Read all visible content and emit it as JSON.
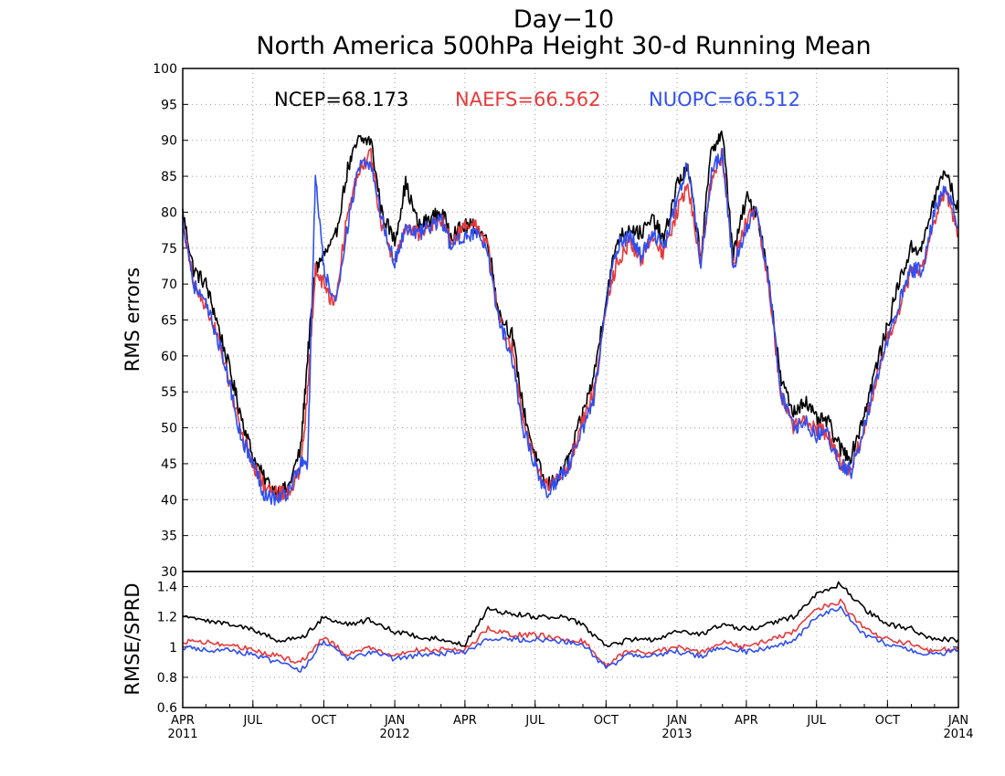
{
  "title": {
    "line1": "Day−10",
    "line2": "North America 500hPa Height 30-d Running Mean"
  },
  "legend": [
    {
      "name": "NCEP",
      "value": "68.173",
      "color": "#000000"
    },
    {
      "name": "NAEFS",
      "value": "66.562",
      "color": "#e8393a"
    },
    {
      "name": "NUOPC",
      "value": "66.512",
      "color": "#2f4ff0"
    }
  ],
  "chart_data": [
    {
      "type": "line",
      "panel": "top",
      "ylabel": "RMS errors",
      "ylim": [
        30,
        100
      ],
      "yticks": [
        30,
        35,
        40,
        45,
        50,
        55,
        60,
        65,
        70,
        75,
        80,
        85,
        90,
        95,
        100
      ],
      "grid": true,
      "x": [
        "2011-04-01",
        "2011-04-15",
        "2011-05-01",
        "2011-05-15",
        "2011-06-01",
        "2011-06-15",
        "2011-07-01",
        "2011-07-15",
        "2011-08-01",
        "2011-08-15",
        "2011-09-01",
        "2011-09-10",
        "2011-09-20",
        "2011-10-01",
        "2011-10-15",
        "2011-11-01",
        "2011-11-15",
        "2011-12-01",
        "2011-12-15",
        "2012-01-01",
        "2012-01-15",
        "2012-02-01",
        "2012-02-15",
        "2012-03-01",
        "2012-03-15",
        "2012-04-01",
        "2012-04-15",
        "2012-05-01",
        "2012-05-15",
        "2012-06-01",
        "2012-06-15",
        "2012-07-01",
        "2012-07-15",
        "2012-08-01",
        "2012-08-15",
        "2012-09-01",
        "2012-09-15",
        "2012-10-01",
        "2012-10-15",
        "2012-11-01",
        "2012-11-15",
        "2012-12-01",
        "2012-12-15",
        "2013-01-01",
        "2013-01-15",
        "2013-02-01",
        "2013-02-15",
        "2013-03-01",
        "2013-03-15",
        "2013-04-01",
        "2013-04-15",
        "2013-05-01",
        "2013-05-15",
        "2013-06-01",
        "2013-06-15",
        "2013-07-01",
        "2013-07-15",
        "2013-08-01",
        "2013-08-15",
        "2013-09-01",
        "2013-09-15",
        "2013-10-01",
        "2013-10-15",
        "2013-11-01",
        "2013-11-15",
        "2013-12-01",
        "2013-12-15",
        "2014-01-01"
      ],
      "series": [
        {
          "name": "NCEP",
          "color": "#000000",
          "values": [
            80,
            72,
            70,
            65,
            58,
            52,
            46,
            43,
            41,
            41.5,
            47,
            60,
            72,
            74,
            76,
            86,
            90,
            90,
            80,
            76,
            84,
            78,
            79,
            80,
            77,
            78,
            78,
            76,
            66,
            63,
            53,
            46,
            42,
            43,
            46,
            52,
            57,
            68,
            76,
            78,
            77,
            79,
            76,
            84,
            86,
            74,
            89,
            91,
            74,
            82,
            80,
            70,
            57,
            52,
            54,
            51,
            51,
            47,
            46,
            52,
            58,
            64,
            70,
            75,
            75,
            82,
            86,
            80
          ]
        },
        {
          "name": "NAEFS",
          "color": "#e8393a",
          "values": [
            79,
            70,
            67,
            63,
            56,
            50,
            45,
            42,
            41,
            41,
            44,
            55,
            72,
            70,
            67,
            80,
            86,
            88,
            78,
            73,
            78,
            77,
            78,
            79,
            76,
            78,
            78,
            75,
            65,
            61,
            51,
            45,
            42,
            43,
            45,
            51,
            55,
            67,
            73,
            76,
            73,
            77,
            74,
            80,
            84,
            73,
            85,
            88,
            73,
            79,
            80,
            69,
            55,
            50,
            51,
            50,
            49,
            45,
            44,
            50,
            56,
            62,
            66,
            72,
            72,
            79,
            83,
            77
          ]
        },
        {
          "name": "NUOPC",
          "color": "#2f4ff0",
          "values": [
            79,
            70,
            67,
            63,
            56,
            49,
            45,
            41,
            40,
            41,
            45,
            45,
            85,
            72,
            67,
            78,
            86,
            87,
            79,
            73,
            78,
            77,
            78,
            79,
            75,
            77,
            77,
            74,
            65,
            60,
            50,
            45,
            41,
            43,
            45,
            50,
            54,
            67,
            75,
            77,
            74,
            77,
            75,
            82,
            87,
            73,
            86,
            88,
            72,
            78,
            80,
            70,
            55,
            50,
            51,
            49,
            49,
            45,
            44,
            50,
            56,
            62,
            67,
            72,
            72,
            80,
            84,
            78
          ]
        }
      ]
    },
    {
      "type": "line",
      "panel": "bottom",
      "ylabel": "RMSE/SPRD",
      "ylim": [
        0.6,
        1.5
      ],
      "yticks": [
        "0.6",
        "0.8",
        "1",
        "1.2",
        "1.4"
      ],
      "grid": true,
      "x_tick_labels": [
        {
          "date": "2011-04-01",
          "month": "APR",
          "year": "2011"
        },
        {
          "date": "2011-07-01",
          "month": "JUL",
          "year": ""
        },
        {
          "date": "2011-10-01",
          "month": "OCT",
          "year": ""
        },
        {
          "date": "2012-01-01",
          "month": "JAN",
          "year": "2012"
        },
        {
          "date": "2012-04-01",
          "month": "APR",
          "year": ""
        },
        {
          "date": "2012-07-01",
          "month": "JUL",
          "year": ""
        },
        {
          "date": "2012-10-01",
          "month": "OCT",
          "year": ""
        },
        {
          "date": "2013-01-01",
          "month": "JAN",
          "year": "2013"
        },
        {
          "date": "2013-04-01",
          "month": "APR",
          "year": ""
        },
        {
          "date": "2013-07-01",
          "month": "JUL",
          "year": ""
        },
        {
          "date": "2013-10-01",
          "month": "OCT",
          "year": ""
        },
        {
          "date": "2014-01-01",
          "month": "JAN",
          "year": "2014"
        }
      ],
      "x": [
        "2011-04-01",
        "2011-05-01",
        "2011-06-01",
        "2011-07-01",
        "2011-08-01",
        "2011-09-01",
        "2011-10-01",
        "2011-11-01",
        "2011-12-01",
        "2012-01-01",
        "2012-02-01",
        "2012-03-01",
        "2012-04-01",
        "2012-05-01",
        "2012-06-01",
        "2012-07-01",
        "2012-08-01",
        "2012-09-01",
        "2012-10-01",
        "2012-11-01",
        "2012-12-01",
        "2013-01-01",
        "2013-02-01",
        "2013-03-01",
        "2013-04-01",
        "2013-05-01",
        "2013-06-01",
        "2013-07-01",
        "2013-08-01",
        "2013-09-01",
        "2013-10-01",
        "2013-11-01",
        "2013-12-01",
        "2014-01-01"
      ],
      "series": [
        {
          "name": "NCEP",
          "color": "#000000",
          "values": [
            1.22,
            1.18,
            1.15,
            1.12,
            1.05,
            1.05,
            1.2,
            1.15,
            1.18,
            1.1,
            1.07,
            1.05,
            1.02,
            1.25,
            1.22,
            1.2,
            1.2,
            1.15,
            1.0,
            1.05,
            1.05,
            1.1,
            1.08,
            1.15,
            1.12,
            1.15,
            1.2,
            1.35,
            1.42,
            1.25,
            1.15,
            1.12,
            1.05,
            1.05
          ]
        },
        {
          "name": "NAEFS",
          "color": "#e8393a",
          "values": [
            1.04,
            1.03,
            1.02,
            0.98,
            0.94,
            0.9,
            1.06,
            0.95,
            1.0,
            0.95,
            0.98,
            0.98,
            0.98,
            1.12,
            1.08,
            1.08,
            1.06,
            1.04,
            0.88,
            0.98,
            0.96,
            1.0,
            0.96,
            1.03,
            1.0,
            1.05,
            1.1,
            1.25,
            1.3,
            1.12,
            1.05,
            1.02,
            0.97,
            1.0
          ]
        },
        {
          "name": "NUOPC",
          "color": "#2f4ff0",
          "values": [
            1.0,
            0.98,
            0.98,
            0.95,
            0.9,
            0.84,
            1.04,
            0.92,
            0.97,
            0.92,
            0.95,
            0.96,
            0.96,
            1.06,
            1.05,
            1.05,
            1.04,
            1.02,
            0.86,
            0.95,
            0.94,
            0.97,
            0.94,
            1.0,
            0.97,
            1.0,
            1.04,
            1.2,
            1.26,
            1.08,
            1.02,
            0.98,
            0.95,
            0.98
          ]
        }
      ]
    }
  ]
}
